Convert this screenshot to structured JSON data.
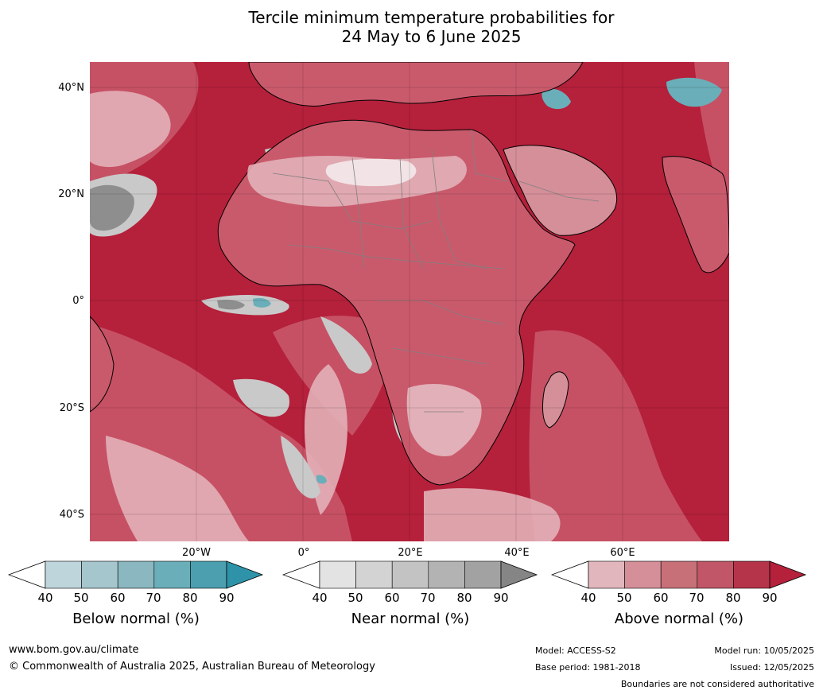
{
  "title": {
    "line1": "Tercile minimum temperature probabilities for",
    "line2": "24 May to 6 June 2025"
  },
  "map": {
    "lat_labels": [
      "40°N",
      "20°N",
      "0°",
      "20°S",
      "40°S"
    ],
    "lon_labels": [
      "20°W",
      "0°",
      "20°E",
      "40°E",
      "60°E"
    ],
    "colors": {
      "ocean_high": "#b5203b",
      "land_mid": "#c95a6c",
      "light_pink": "#e2b0b8",
      "near_normal": "#c9c9c9",
      "near_normal_dark": "#8e8e8e",
      "below_normal": "#6aaeb9",
      "coast": "#000000",
      "border": "#808080"
    }
  },
  "legends": [
    {
      "name": "Below normal (%)",
      "ticks": [
        "40",
        "50",
        "60",
        "70",
        "80",
        "90"
      ],
      "colors": [
        "#ffffff",
        "#bdd5db",
        "#a4c6cc",
        "#8ab7c0",
        "#6aaeb9",
        "#4b9fae",
        "#2e93a8"
      ]
    },
    {
      "name": "Near normal (%)",
      "ticks": [
        "40",
        "50",
        "60",
        "70",
        "80",
        "90"
      ],
      "colors": [
        "#ffffff",
        "#e3e3e3",
        "#d3d3d3",
        "#c3c3c3",
        "#b3b3b3",
        "#a2a2a2",
        "#858585"
      ]
    },
    {
      "name": "Above normal (%)",
      "ticks": [
        "40",
        "50",
        "60",
        "70",
        "80",
        "90"
      ],
      "colors": [
        "#ffffff",
        "#e2b6bd",
        "#d48f99",
        "#c77078",
        "#c05668",
        "#b5344a",
        "#b5203b"
      ]
    }
  ],
  "footer": {
    "website": "www.bom.gov.au/climate",
    "copyright": "© Commonwealth of Australia 2025, Australian Bureau of Meteorology",
    "model": "Model: ACCESS-S2",
    "base_period": "Base period: 1981-2018",
    "model_run": "Model run: 10/05/2025",
    "issued": "Issued: 12/05/2025",
    "disclaimer": "Boundaries are not considered authoritative"
  }
}
